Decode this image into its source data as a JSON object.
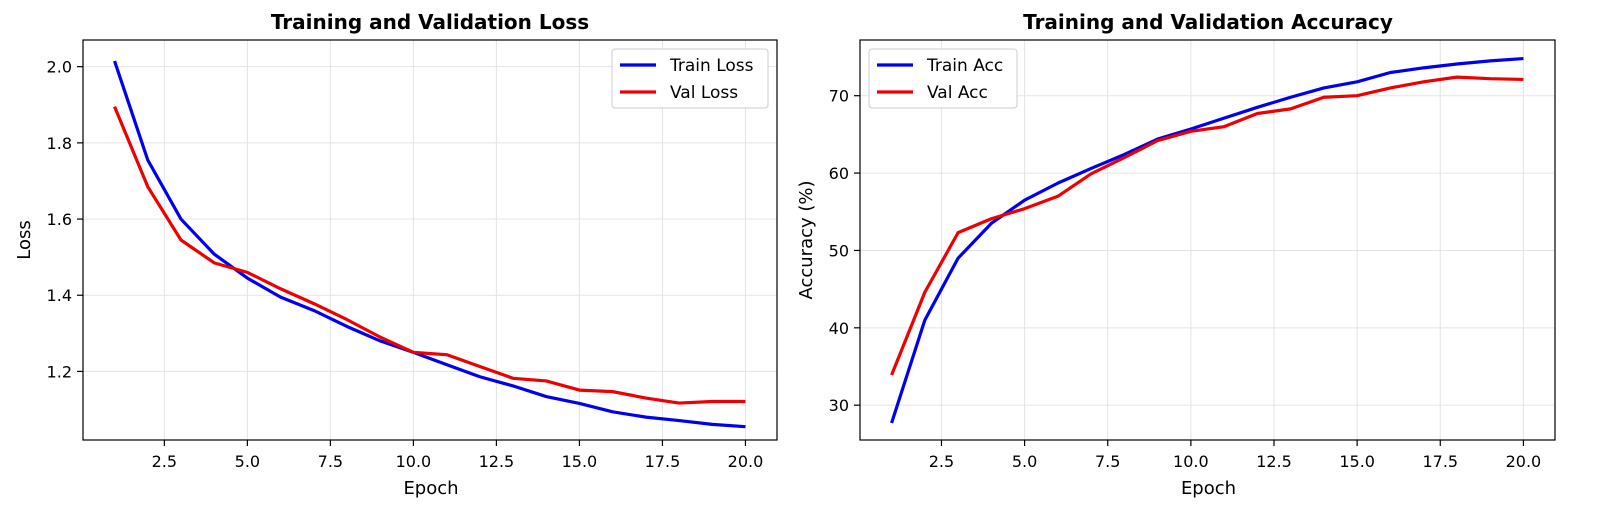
{
  "chart_data": [
    {
      "type": "line",
      "title": "Training and Validation Loss",
      "xlabel": "Epoch",
      "ylabel": "Loss",
      "xlim": [
        0.05,
        20.95
      ],
      "ylim": [
        1.02,
        2.07
      ],
      "xticks": [
        2.5,
        5.0,
        7.5,
        10.0,
        12.5,
        15.0,
        17.5,
        20.0
      ],
      "xtick_labels": [
        "2.5",
        "5.0",
        "7.5",
        "10.0",
        "12.5",
        "15.0",
        "17.5",
        "20.0"
      ],
      "yticks": [
        1.2,
        1.4,
        1.6,
        1.8,
        2.0
      ],
      "ytick_labels": [
        "1.2",
        "1.4",
        "1.6",
        "1.8",
        "2.0"
      ],
      "grid": true,
      "legend_position": "top-right",
      "x": [
        1,
        2,
        3,
        4,
        5,
        6,
        7,
        8,
        9,
        10,
        11,
        12,
        13,
        14,
        15,
        16,
        17,
        18,
        19,
        20
      ],
      "series": [
        {
          "name": "Train Loss",
          "color": "#0000ee",
          "values": [
            2.015,
            1.755,
            1.6,
            1.508,
            1.445,
            1.395,
            1.36,
            1.318,
            1.28,
            1.25,
            1.218,
            1.186,
            1.162,
            1.134,
            1.116,
            1.094,
            1.08,
            1.071,
            1.061,
            1.055
          ]
        },
        {
          "name": "Val Loss",
          "color": "#ee0000",
          "values": [
            1.895,
            1.685,
            1.545,
            1.485,
            1.46,
            1.417,
            1.378,
            1.336,
            1.29,
            1.25,
            1.244,
            1.213,
            1.182,
            1.175,
            1.151,
            1.147,
            1.13,
            1.117,
            1.121,
            1.121
          ]
        }
      ]
    },
    {
      "type": "line",
      "title": "Training and Validation Accuracy",
      "xlabel": "Epoch",
      "ylabel": "Accuracy (%)",
      "xlim": [
        0.05,
        20.95
      ],
      "ylim": [
        25.5,
        77.2
      ],
      "xticks": [
        2.5,
        5.0,
        7.5,
        10.0,
        12.5,
        15.0,
        17.5,
        20.0
      ],
      "xtick_labels": [
        "2.5",
        "5.0",
        "7.5",
        "10.0",
        "12.5",
        "15.0",
        "17.5",
        "20.0"
      ],
      "yticks": [
        30,
        40,
        50,
        60,
        70
      ],
      "ytick_labels": [
        "30",
        "40",
        "50",
        "60",
        "70"
      ],
      "grid": true,
      "legend_position": "top-left",
      "x": [
        1,
        2,
        3,
        4,
        5,
        6,
        7,
        8,
        9,
        10,
        11,
        12,
        13,
        14,
        15,
        16,
        17,
        18,
        19,
        20
      ],
      "series": [
        {
          "name": "Train Acc",
          "color": "#0000ee",
          "values": [
            27.7,
            41.0,
            49.0,
            53.5,
            56.5,
            58.7,
            60.6,
            62.4,
            64.4,
            65.7,
            67.1,
            68.5,
            69.8,
            71.0,
            71.8,
            73.0,
            73.6,
            74.1,
            74.5,
            74.8
          ]
        },
        {
          "name": "Val Acc",
          "color": "#ee0000",
          "values": [
            33.9,
            44.6,
            52.3,
            54.1,
            55.4,
            57.0,
            59.9,
            62.0,
            64.2,
            65.4,
            66.0,
            67.7,
            68.3,
            69.8,
            70.0,
            71.0,
            71.8,
            72.4,
            72.2,
            72.1
          ]
        }
      ]
    }
  ]
}
